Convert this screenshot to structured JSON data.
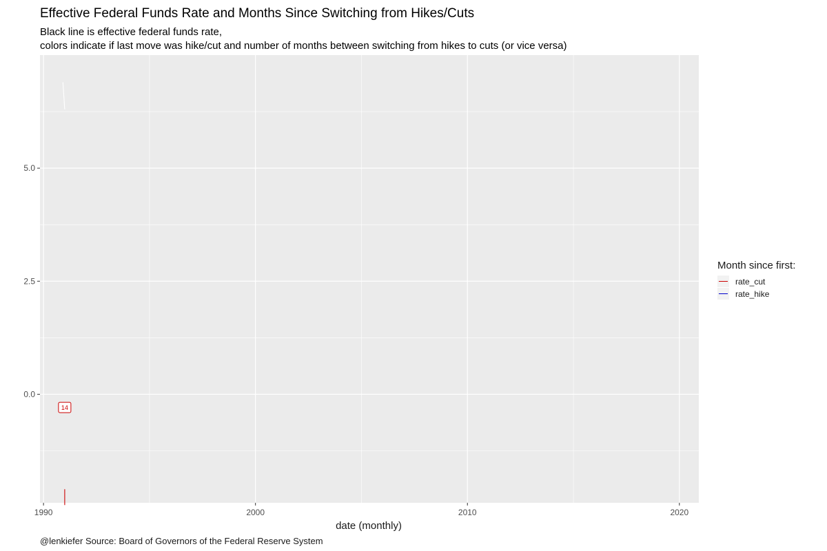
{
  "chart_data": {
    "type": "line",
    "title": "Effective Federal Funds Rate and Months Since Switching from Hikes/Cuts",
    "subtitle_lines": [
      "Black line is effective federal funds rate,",
      "colors indicate if last move was hike/cut and number of months between switching from hikes to cuts (or vice versa)"
    ],
    "xlabel": "date (monthly)",
    "ylabel": "",
    "caption": "@lenkiefer Source: Board of Governors of the Federal Reserve System",
    "x_ticks": [
      "1990",
      "2000",
      "2010",
      "2020"
    ],
    "y_ticks": [
      "0.0",
      "2.5",
      "5.0"
    ],
    "xlim": [
      "1989-11",
      "2020-12"
    ],
    "ylim": [
      -2.4,
      7.5
    ],
    "grid": true,
    "legend": {
      "title": "Month since first:",
      "position": "right",
      "items": [
        {
          "label": "rate_cut",
          "color": "#cc0000"
        },
        {
          "label": "rate_hike",
          "color": "#0000cc"
        }
      ]
    },
    "series": [
      {
        "name": "effective federal funds rate",
        "color": "#ffffff",
        "points": [
          {
            "x": "1990-12",
            "y": 6.9
          },
          {
            "x": "1991-01",
            "y": 6.3
          }
        ]
      },
      {
        "name": "rate_cut",
        "color": "#cc0000",
        "points": [
          {
            "x": "1991-01",
            "y": -2.1
          },
          {
            "x": "1991-01",
            "y": -2.45
          }
        ]
      }
    ],
    "annotations": [
      {
        "x": "1991-01",
        "y": -0.3,
        "text": "14",
        "color": "#cc0000"
      }
    ],
    "colors": {
      "panel": "#ebebeb",
      "grid": "#ffffff"
    }
  }
}
